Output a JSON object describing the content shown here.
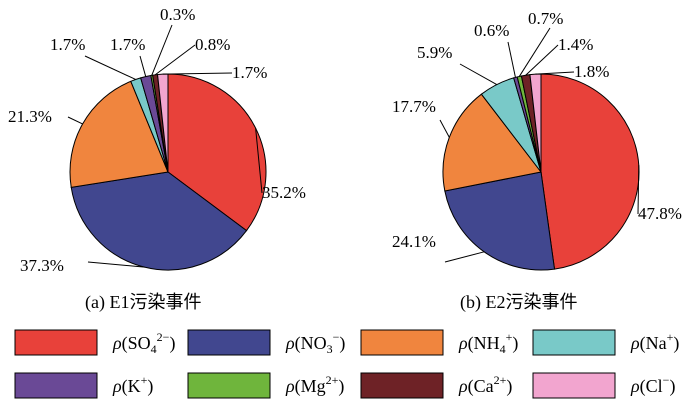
{
  "colors": {
    "SO4": "#e8413a",
    "NO3": "#41478f",
    "NH4": "#f0853e",
    "Na": "#79c9c8",
    "K": "#6a4996",
    "Mg": "#6fb53c",
    "Ca": "#6e2226",
    "Cl": "#f2a5cf"
  },
  "legend": [
    {
      "key": "SO4",
      "label": "ρ(SO",
      "sub": "4",
      "sup": "2−",
      "close": ")"
    },
    {
      "key": "NO3",
      "label": "ρ(NO",
      "sub": "3",
      "sup": "−",
      "close": ")"
    },
    {
      "key": "NH4",
      "label": "ρ(NH",
      "sub": "4",
      "sup": "+",
      "close": ")"
    },
    {
      "key": "Na",
      "label": "ρ(Na",
      "sub": "",
      "sup": "+",
      "close": ")"
    },
    {
      "key": "K",
      "label": "ρ(K",
      "sub": "",
      "sup": "+",
      "close": ")"
    },
    {
      "key": "Mg",
      "label": "ρ(Mg",
      "sub": "",
      "sup": "2+",
      "close": ")"
    },
    {
      "key": "Ca",
      "label": "ρ(Ca",
      "sub": "",
      "sup": "2+",
      "close": ")"
    },
    {
      "key": "Cl",
      "label": "ρ(Cl",
      "sub": "",
      "sup": "−",
      "close": ")"
    }
  ],
  "chart_data": [
    {
      "type": "pie",
      "title": "(a)  E1污染事件",
      "slices": [
        {
          "key": "SO4",
          "value": 35.2,
          "label": "35.2%"
        },
        {
          "key": "NO3",
          "value": 37.3,
          "label": "37.3%"
        },
        {
          "key": "NH4",
          "value": 21.3,
          "label": "21.3%"
        },
        {
          "key": "Na",
          "value": 1.7,
          "label": "1.7%"
        },
        {
          "key": "K",
          "value": 1.7,
          "label": "1.7%"
        },
        {
          "key": "Mg",
          "value": 0.3,
          "label": "0.3%"
        },
        {
          "key": "Ca",
          "value": 0.8,
          "label": "0.8%"
        },
        {
          "key": "Cl",
          "value": 1.7,
          "label": "1.7%"
        }
      ]
    },
    {
      "type": "pie",
      "title": "(b)  E2污染事件",
      "slices": [
        {
          "key": "SO4",
          "value": 47.8,
          "label": "47.8%"
        },
        {
          "key": "NO3",
          "value": 24.1,
          "label": "24.1%"
        },
        {
          "key": "NH4",
          "value": 17.7,
          "label": "17.7%"
        },
        {
          "key": "Na",
          "value": 5.9,
          "label": "5.9%"
        },
        {
          "key": "K",
          "value": 0.6,
          "label": "0.6%"
        },
        {
          "key": "Mg",
          "value": 0.7,
          "label": "0.7%"
        },
        {
          "key": "Ca",
          "value": 1.4,
          "label": "1.4%"
        },
        {
          "key": "Cl",
          "value": 1.8,
          "label": "1.8%"
        }
      ]
    }
  ]
}
